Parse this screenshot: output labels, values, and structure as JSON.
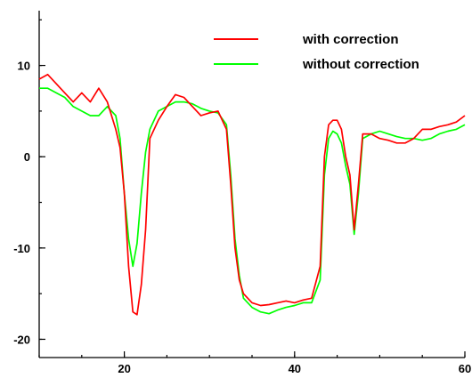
{
  "chart_data": {
    "type": "line",
    "title": "",
    "xlabel": "",
    "ylabel": "",
    "xlim": [
      10,
      60
    ],
    "ylim": [
      -22,
      16
    ],
    "x_ticks": [
      20,
      40,
      60
    ],
    "x_tick_labels": [
      "20",
      "40",
      "60"
    ],
    "y_ticks": [
      -20,
      -10,
      0,
      10
    ],
    "y_tick_labels": [
      "-20",
      "-10",
      "0",
      "10"
    ],
    "grid": false,
    "legend_position": "top-right",
    "series": [
      {
        "name": "with correction",
        "color": "#ff0000",
        "x": [
          10,
          11,
          12,
          13,
          14,
          15,
          16,
          17,
          18,
          19,
          19.5,
          20,
          20.5,
          21,
          21.5,
          22,
          22.5,
          23,
          24,
          25,
          26,
          27,
          28,
          29,
          30,
          31,
          32,
          32.5,
          33,
          33.5,
          34,
          35,
          36,
          37,
          38,
          39,
          40,
          41,
          42,
          43,
          43.5,
          44,
          44.5,
          45,
          45.5,
          46,
          46.5,
          47,
          47.5,
          48,
          49,
          50,
          51,
          52,
          53,
          54,
          55,
          56,
          57,
          58,
          59,
          60
        ],
        "values": [
          8.5,
          9,
          8,
          7,
          6,
          7,
          6,
          7.5,
          6,
          3,
          1,
          -4,
          -12,
          -17,
          -17.3,
          -14,
          -8,
          2,
          4,
          5.5,
          6.8,
          6.5,
          5.5,
          4.5,
          4.8,
          5,
          3,
          -3,
          -10,
          -13.5,
          -15,
          -16,
          -16.3,
          -16.2,
          -16,
          -15.8,
          -16,
          -15.7,
          -15.5,
          -12,
          0,
          3.5,
          4,
          4,
          3,
          0,
          -2,
          -8,
          -3,
          2.5,
          2.5,
          2,
          1.8,
          1.5,
          1.5,
          2,
          3,
          3,
          3.3,
          3.5,
          3.8,
          4.5
        ]
      },
      {
        "name": "without correction",
        "color": "#00ff00",
        "x": [
          10,
          11,
          12,
          13,
          14,
          15,
          16,
          17,
          18,
          19,
          19.5,
          20,
          20.5,
          21,
          21.5,
          22,
          22.5,
          23,
          24,
          25,
          26,
          27,
          28,
          29,
          30,
          31,
          32,
          32.5,
          33,
          33.5,
          34,
          35,
          36,
          37,
          38,
          39,
          40,
          41,
          42,
          43,
          43.5,
          44,
          44.5,
          45,
          45.5,
          46,
          46.5,
          47,
          47.5,
          48,
          49,
          50,
          51,
          52,
          53,
          54,
          55,
          56,
          57,
          58,
          59,
          60
        ],
        "values": [
          7.5,
          7.5,
          7,
          6.5,
          5.5,
          5,
          4.5,
          4.5,
          5.5,
          4.5,
          2,
          -4,
          -9,
          -12,
          -9.5,
          -4,
          0.5,
          3,
          5,
          5.5,
          6,
          6,
          5.8,
          5.3,
          5,
          4.8,
          3.5,
          -2,
          -9,
          -13,
          -15.5,
          -16.5,
          -17,
          -17.2,
          -16.8,
          -16.5,
          -16.3,
          -16,
          -16,
          -13.5,
          -2,
          2,
          2.8,
          2.5,
          1.5,
          -1,
          -3,
          -8.5,
          -4,
          2,
          2.5,
          2.8,
          2.5,
          2.2,
          2,
          2,
          1.8,
          2,
          2.5,
          2.8,
          3,
          3.5
        ]
      }
    ]
  }
}
